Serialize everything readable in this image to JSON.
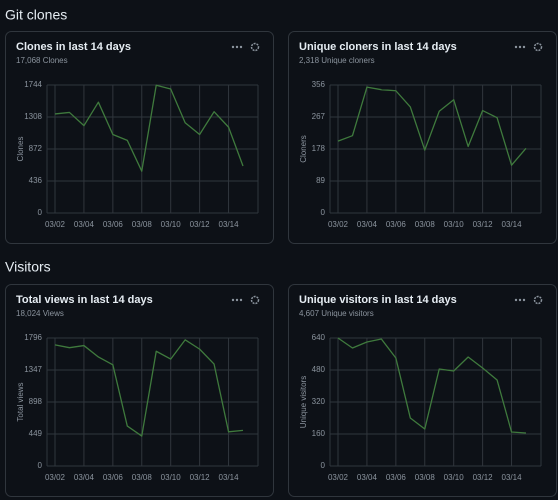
{
  "sections": [
    {
      "title": "Git clones"
    },
    {
      "title": "Visitors"
    }
  ],
  "chart_data": [
    {
      "type": "line",
      "title": "Clones in last 14 days",
      "subtitle": "17,068 Clones",
      "ylabel": "Clones",
      "color": "#3f7a3d",
      "categories": [
        "03/02",
        null,
        "03/04",
        null,
        "03/06",
        null,
        "03/08",
        null,
        "03/10",
        null,
        "03/12",
        null,
        "03/14",
        null
      ],
      "values": [
        1350,
        1370,
        1190,
        1510,
        1070,
        990,
        570,
        1740,
        1690,
        1230,
        1070,
        1380,
        1170,
        640
      ],
      "ylim": [
        0,
        1744
      ],
      "yticks": [
        0,
        436,
        872,
        1308,
        1744
      ],
      "grid": true
    },
    {
      "type": "line",
      "title": "Unique cloners in last 14 days",
      "subtitle": "2,318 Unique cloners",
      "ylabel": "Cloners",
      "color": "#3f7a3d",
      "categories": [
        "03/02",
        null,
        "03/04",
        null,
        "03/06",
        null,
        "03/08",
        null,
        "03/10",
        null,
        "03/12",
        null,
        "03/14",
        null
      ],
      "values": [
        200,
        215,
        350,
        343,
        340,
        295,
        175,
        283,
        315,
        185,
        285,
        265,
        133,
        180
      ],
      "ylim": [
        0,
        356
      ],
      "yticks": [
        0,
        89,
        178,
        267,
        356
      ],
      "grid": true
    },
    {
      "type": "line",
      "title": "Total views in last 14 days",
      "subtitle": "18,024 Views",
      "ylabel": "Total views",
      "color": "#3f7a3d",
      "categories": [
        "03/02",
        null,
        "03/04",
        null,
        "03/06",
        null,
        "03/08",
        null,
        "03/10",
        null,
        "03/12",
        null,
        "03/14",
        null
      ],
      "values": [
        1700,
        1660,
        1690,
        1530,
        1420,
        560,
        420,
        1610,
        1500,
        1770,
        1640,
        1430,
        480,
        500
      ],
      "ylim": [
        0,
        1796
      ],
      "yticks": [
        0,
        449,
        898,
        1347,
        1796
      ],
      "grid": true
    },
    {
      "type": "line",
      "title": "Unique visitors in last 14 days",
      "subtitle": "4,607 Unique visitors",
      "ylabel": "Unique visitors",
      "color": "#3f7a3d",
      "categories": [
        "03/02",
        null,
        "03/04",
        null,
        "03/06",
        null,
        "03/08",
        null,
        "03/10",
        null,
        "03/12",
        null,
        "03/14",
        null
      ],
      "values": [
        640,
        590,
        620,
        635,
        540,
        240,
        185,
        485,
        475,
        545,
        490,
        430,
        170,
        165
      ],
      "ylim": [
        0,
        640
      ],
      "yticks": [
        0,
        160,
        320,
        480,
        640
      ],
      "grid": true
    }
  ]
}
